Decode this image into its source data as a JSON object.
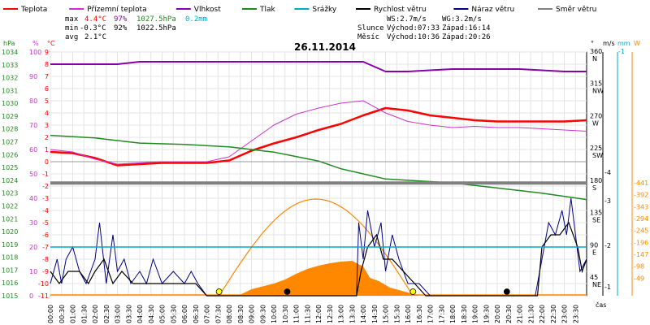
{
  "legend": [
    {
      "label": "Teplota",
      "color": "#ff0000"
    },
    {
      "label": "Přízemní teplota",
      "color": "#cc33cc"
    },
    {
      "label": "Vlhkost",
      "color": "#8800aa"
    },
    {
      "label": "Tlak",
      "color": "#228822"
    },
    {
      "label": "Srážky",
      "color": "#00aacc"
    },
    {
      "label": "Rychlost větru",
      "color": "#000000"
    },
    {
      "label": "Náraz větru",
      "color": "#000088"
    },
    {
      "label": "Směr větru",
      "color": "#808080"
    }
  ],
  "stats": {
    "max_label": "max",
    "max_temp": "4.4°C",
    "max_hum": "97%",
    "max_press": "1027.5hPa",
    "rain": "0.2mm",
    "min_label": "min",
    "min_temp": "-0.3°C",
    "min_hum": "92%",
    "min_press": "1022.5hPa",
    "avg_label": "avg",
    "avg_temp": "2.1°C"
  },
  "wind_info": {
    "ws": "WS:2.7m/s",
    "wg": "WG:3.2m/s"
  },
  "sun": {
    "label": "Slunce",
    "rise": "Východ:07:33",
    "set": "Západ:16:14"
  },
  "moon": {
    "label": "Měsíc",
    "rise": "Východ:10:36",
    "set": "Západ:20:26"
  },
  "axis_units": {
    "hpa": "hPa",
    "percent": "%",
    "celsius": "°C",
    "degree": "°",
    "ms": "m/s",
    "mm": "mm",
    "wm2": "W",
    "cas": "čas"
  },
  "chart_data": {
    "type": "line",
    "title": "26.11.2014",
    "x_labels": [
      "00:00",
      "00:30",
      "01:00",
      "01:30",
      "02:00",
      "02:30",
      "03:00",
      "03:30",
      "04:00",
      "04:30",
      "05:00",
      "05:30",
      "06:00",
      "06:30",
      "07:00",
      "07:30",
      "08:00",
      "08:30",
      "09:00",
      "09:30",
      "10:00",
      "10:30",
      "11:00",
      "11:30",
      "12:00",
      "12:30",
      "13:00",
      "13:30",
      "14:00",
      "14:30",
      "15:00",
      "15:30",
      "16:00",
      "16:30",
      "17:00",
      "17:30",
      "18:00",
      "18:30",
      "19:00",
      "19:30",
      "20:00",
      "20:30",
      "21:00",
      "21:30",
      "22:00",
      "22:30",
      "23:00",
      "23:30"
    ],
    "axes": {
      "pressure": {
        "unit": "hPa",
        "min": 1015,
        "max": 1034,
        "ticks": [
          1015,
          1016,
          1017,
          1018,
          1019,
          1020,
          1021,
          1022,
          1023,
          1024,
          1025,
          1026,
          1027,
          1028,
          1029,
          1030,
          1031,
          1032,
          1033,
          1034
        ]
      },
      "humidity": {
        "unit": "%",
        "min": 0,
        "max": 100,
        "ticks": [
          0,
          10,
          20,
          30,
          40,
          50,
          60,
          70,
          80,
          90,
          100
        ]
      },
      "temperature": {
        "unit": "°C",
        "min": -11,
        "max": 9,
        "ticks": [
          -11,
          -10,
          -9,
          -8,
          -7,
          -6,
          -5,
          -4,
          -3,
          -2,
          -1,
          0,
          1,
          2,
          3,
          4,
          5,
          6,
          7,
          8,
          9
        ]
      },
      "wind_dir": {
        "unit": "°",
        "ticks": [
          {
            "v": 360,
            "l": "N"
          },
          {
            "v": 315,
            "l": "NW"
          },
          {
            "v": 270,
            "l": "W"
          },
          {
            "v": 225,
            "l": "SW"
          },
          {
            "v": 180,
            "l": "S"
          },
          {
            "v": 135,
            "l": "SE"
          },
          {
            "v": 90,
            "l": "E"
          },
          {
            "v": 45,
            "l": "NE"
          }
        ]
      },
      "wind_speed": {
        "unit": "m/s",
        "ticks": [
          1,
          2,
          3,
          4
        ]
      },
      "rain": {
        "unit": "mm",
        "ticks": [
          1
        ]
      },
      "solar": {
        "unit": "W",
        "ticks": [
          49,
          98,
          147,
          196,
          245,
          294,
          343,
          392,
          441
        ]
      }
    },
    "series": [
      {
        "name": "Teplota",
        "axis": "temperature",
        "color": "#ff0000",
        "hours": [
          0,
          1,
          2,
          3,
          4,
          5,
          6,
          7,
          8,
          9,
          10,
          11,
          12,
          13,
          14,
          15,
          16,
          17,
          18,
          19,
          20,
          21,
          22,
          23,
          24
        ],
        "values": [
          0.8,
          0.7,
          0.3,
          -0.3,
          -0.2,
          -0.1,
          -0.1,
          -0.1,
          0.1,
          0.9,
          1.5,
          2.0,
          2.6,
          3.1,
          3.8,
          4.4,
          4.2,
          3.8,
          3.6,
          3.4,
          3.3,
          3.3,
          3.3,
          3.3,
          3.4
        ]
      },
      {
        "name": "Přízemní teplota",
        "axis": "temperature",
        "color": "#cc33cc",
        "hours": [
          0,
          1,
          2,
          3,
          4,
          5,
          6,
          7,
          8,
          9,
          10,
          11,
          12,
          13,
          14,
          15,
          16,
          17,
          18,
          19,
          20,
          21,
          22,
          23,
          24
        ],
        "values": [
          1.0,
          0.8,
          0.2,
          -0.2,
          -0.1,
          0.0,
          0.0,
          0.0,
          0.4,
          1.7,
          3.0,
          3.9,
          4.4,
          4.8,
          5.0,
          4.0,
          3.3,
          3.0,
          2.8,
          2.9,
          2.8,
          2.8,
          2.7,
          2.6,
          2.5
        ]
      },
      {
        "name": "Vlhkost",
        "axis": "humidity",
        "color": "#8800aa",
        "hours": [
          0,
          3,
          4,
          5,
          6,
          9,
          12,
          14,
          15,
          16,
          18,
          21,
          23,
          24
        ],
        "values": [
          95,
          95,
          96,
          96,
          96,
          96,
          96,
          96,
          92,
          92,
          93,
          93,
          92,
          92
        ]
      },
      {
        "name": "Tlak",
        "axis": "pressure",
        "color": "#228822",
        "hours": [
          0,
          2,
          4,
          6,
          8,
          10,
          12,
          13,
          14,
          15,
          16,
          17,
          18,
          20,
          22,
          24
        ],
        "values": [
          1027.5,
          1027.3,
          1026.9,
          1026.8,
          1026.6,
          1026.2,
          1025.5,
          1024.9,
          1024.5,
          1024.1,
          1024.0,
          1023.9,
          1023.8,
          1023.4,
          1023.0,
          1022.5
        ]
      },
      {
        "name": "Srážky",
        "axis": "temperature",
        "color": "#00aacc",
        "hours": [
          0,
          24
        ],
        "values": [
          -7,
          -7
        ]
      },
      {
        "name": "Směr větru",
        "axis": "temperature",
        "color": "#808080",
        "hours": [
          0,
          24
        ],
        "values": [
          -1.75,
          -1.75
        ]
      }
    ]
  }
}
